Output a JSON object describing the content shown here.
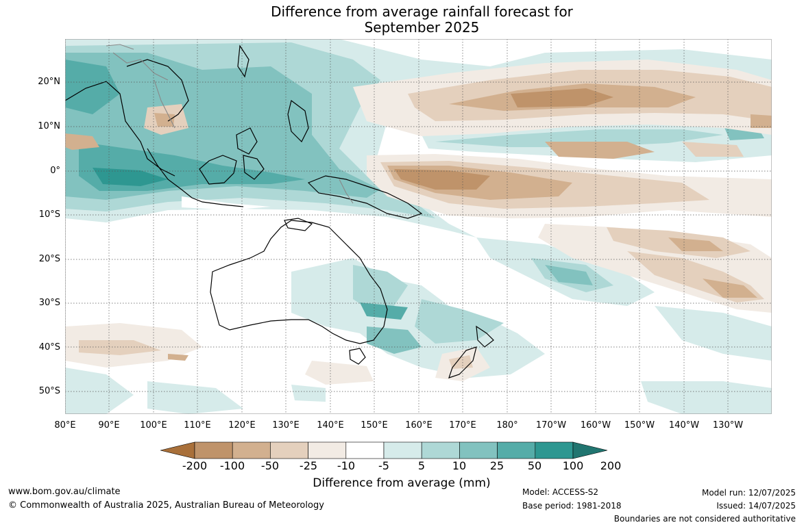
{
  "title": {
    "line1": "Difference from average rainfall forecast for",
    "line2": "September 2025"
  },
  "map": {
    "lat_labels": [
      "20°N",
      "10°N",
      "0°",
      "10°S",
      "20°S",
      "30°S",
      "40°S",
      "50°S"
    ],
    "lon_labels": [
      "80°E",
      "90°E",
      "100°E",
      "110°E",
      "120°E",
      "130°E",
      "140°E",
      "150°E",
      "160°E",
      "170°E",
      "180°",
      "170°W",
      "160°W",
      "150°W",
      "140°W",
      "130°W"
    ]
  },
  "legend": {
    "tick_labels": [
      "-200",
      "-100",
      "-50",
      "-25",
      "-10",
      "-5",
      "5",
      "10",
      "25",
      "50",
      "100",
      "200"
    ],
    "colors": [
      "#a9703a",
      "#bf936a",
      "#d2b08f",
      "#e4d0bd",
      "#f2ebe4",
      "#ffffff",
      "#d6ebea",
      "#aed8d6",
      "#82c2bf",
      "#55aca8",
      "#2e9791",
      "#217570"
    ],
    "title": "Difference from average (mm)"
  },
  "footer": {
    "website": "www.bom.gov.au/climate",
    "copyright": "© Commonwealth of Australia 2025, Australian Bureau of Meteorology",
    "model": "Model: ACCESS-S2",
    "base_period": "Base period: 1981-2018",
    "model_run": "Model run: 12/07/2025",
    "issued": "Issued: 14/07/2025",
    "disclaimer": "Boundaries are not considered authoritative"
  }
}
